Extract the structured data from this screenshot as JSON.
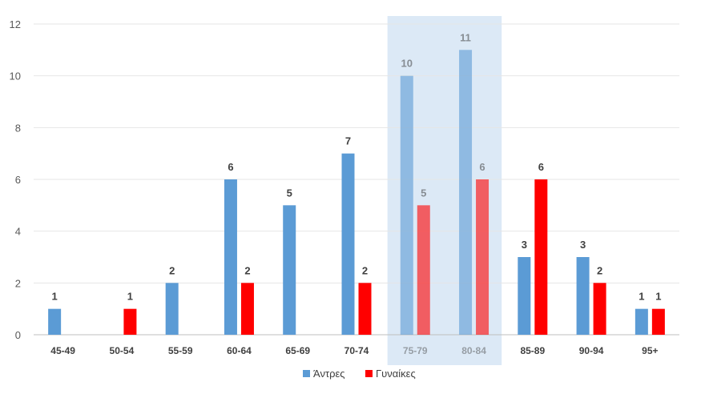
{
  "chart_data": {
    "type": "bar",
    "categories": [
      "45-49",
      "50-54",
      "55-59",
      "60-64",
      "65-69",
      "70-74",
      "75-79",
      "80-84",
      "85-89",
      "90-94",
      "95+"
    ],
    "series": [
      {
        "name": "Άντρες",
        "color": "#5b9bd5",
        "values": [
          1,
          0,
          2,
          6,
          5,
          7,
          10,
          11,
          3,
          3,
          1
        ]
      },
      {
        "name": "Γυναίκες",
        "color": "#ff0000",
        "values": [
          0,
          1,
          0,
          2,
          0,
          2,
          5,
          6,
          6,
          2,
          1
        ]
      }
    ],
    "data_labels": [
      [
        "1",
        "",
        "2",
        "6",
        "5",
        "7",
        "10",
        "11",
        "3",
        "3",
        "1"
      ],
      [
        "",
        "1",
        "",
        "2",
        "",
        "2",
        "5",
        "6",
        "6",
        "2",
        "1"
      ]
    ],
    "highlighted_categories": [
      "75-79",
      "80-84"
    ],
    "highlight_color": "#dce9f6",
    "ylim": [
      0,
      12
    ],
    "yticks": [
      "0",
      "2",
      "4",
      "6",
      "8",
      "10",
      "12"
    ],
    "grid": true,
    "legend_position": "bottom-center",
    "title": "",
    "xlabel": "",
    "ylabel": ""
  }
}
